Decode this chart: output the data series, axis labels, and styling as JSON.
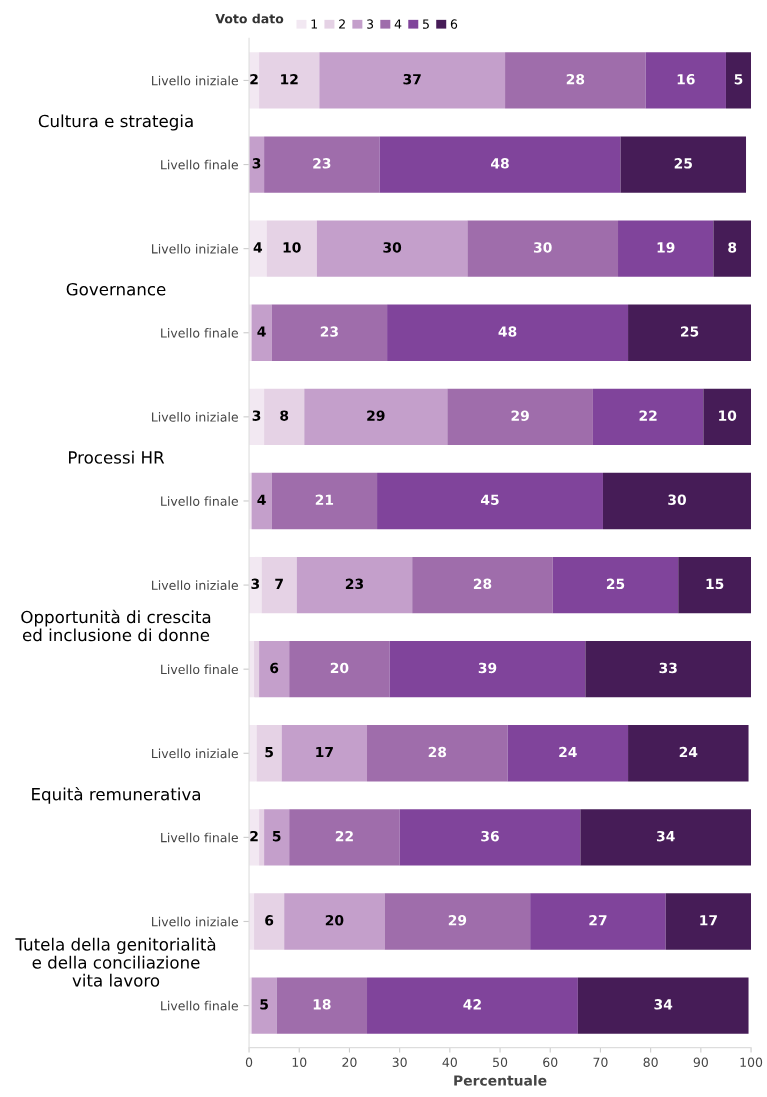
{
  "chart_data": {
    "type": "bar",
    "orientation": "horizontal",
    "stacked": true,
    "categories": [
      "Livello iniziale",
      "Livello finale",
      "Livello iniziale",
      "Livello finale",
      "Livello iniziale",
      "Livello finale",
      "Livello iniziale",
      "Livello finale",
      "Livello iniziale",
      "Livello finale",
      "Livello iniziale",
      "Livello finale"
    ],
    "annotations": [
      "Cultura e strategia",
      "Governance",
      "Processi HR",
      "Opportunità di crescita\ned inclusione di donne",
      "Equità remunerativa",
      "Tutela della genitorialità\ne della conciliazione\nvita lavoro"
    ],
    "series": [
      {
        "name": "1",
        "color": "#f2e8f2",
        "values": [
          2,
          0,
          3.5,
          0.5,
          3,
          0.5,
          2.5,
          1,
          1.5,
          2,
          1,
          0.5
        ],
        "value_labels": [
          "2",
          null,
          "4",
          null,
          "3",
          null,
          "3",
          null,
          null,
          "2",
          null,
          null
        ]
      },
      {
        "name": "2",
        "color": "#e5d2e5",
        "values": [
          12,
          0,
          10,
          0,
          8,
          0,
          7,
          1,
          5,
          1,
          6,
          0
        ],
        "value_labels": [
          "12",
          null,
          "10",
          null,
          "8",
          null,
          "7",
          null,
          "5",
          null,
          "6",
          null
        ]
      },
      {
        "name": "3",
        "color": "#c49fcb",
        "values": [
          37,
          3,
          30,
          4,
          28.5,
          4,
          23,
          6,
          17,
          5,
          20,
          5
        ],
        "value_labels": [
          "37",
          "3",
          "30",
          "4",
          "29",
          "4",
          "23",
          "6",
          "17",
          "5",
          "20",
          "5"
        ]
      },
      {
        "name": "4",
        "color": "#9f6dab",
        "values": [
          28,
          23,
          30,
          23,
          29,
          21,
          28,
          20,
          28,
          22,
          29,
          18
        ],
        "value_labels": [
          "28",
          "23",
          "30",
          "23",
          "29",
          "21",
          "28",
          "20",
          "28",
          "22",
          "29",
          "18"
        ]
      },
      {
        "name": "5",
        "color": "#80449b",
        "values": [
          16,
          48,
          19,
          48,
          22,
          45,
          25,
          39,
          24,
          36,
          27,
          42
        ],
        "value_labels": [
          "16",
          "48",
          "19",
          "48",
          "22",
          "45",
          "25",
          "39",
          "24",
          "36",
          "27",
          "42"
        ]
      },
      {
        "name": "6",
        "color": "#461c57",
        "values": [
          5,
          25,
          7.5,
          24.5,
          9.5,
          29.5,
          14.5,
          33,
          24,
          34,
          17,
          34
        ],
        "value_labels": [
          "5",
          "25",
          "8",
          "25",
          "10",
          "30",
          "15",
          "33",
          "24",
          "34",
          "17",
          "34"
        ]
      }
    ],
    "xlim": [
      0,
      100
    ],
    "xticks": [
      0,
      10,
      20,
      30,
      40,
      50,
      60,
      70,
      80,
      90,
      100
    ],
    "xlabel": "Percentuale",
    "legend_title": "Voto dato",
    "legend": "top",
    "grid": false
  }
}
